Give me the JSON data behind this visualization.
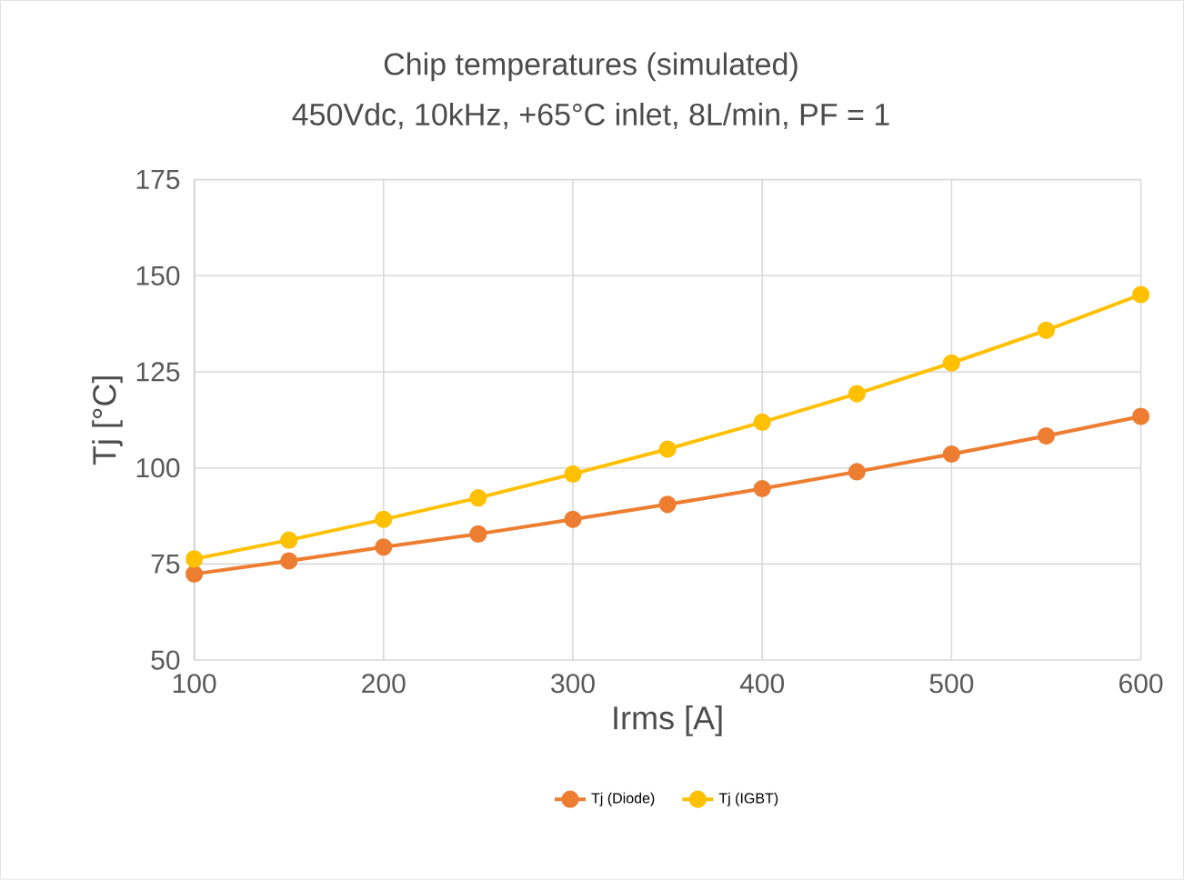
{
  "chart_data": {
    "type": "line",
    "title": "Chip temperatures (simulated)",
    "subtitle": "450Vdc, 10kHz, +65°C inlet, 8L/min, PF = 1",
    "xlabel": "Irms [A]",
    "ylabel": "Tj [°C]",
    "x": [
      100,
      150,
      200,
      250,
      300,
      350,
      400,
      450,
      500,
      550,
      600
    ],
    "series": [
      {
        "name": "Tj (Diode)",
        "color": "#ed7d31",
        "values": [
          72.4,
          75.8,
          79.4,
          82.8,
          86.6,
          90.5,
          94.6,
          99.0,
          103.6,
          108.3,
          113.4
        ]
      },
      {
        "name": "Tj (IGBT)",
        "color": "#ffc000",
        "values": [
          76.3,
          81.2,
          86.6,
          92.2,
          98.4,
          104.9,
          111.9,
          119.3,
          127.3,
          135.8,
          145.1
        ]
      }
    ],
    "xlim": [
      100,
      600
    ],
    "ylim": [
      50,
      175
    ],
    "xticks": [
      100,
      200,
      300,
      400,
      500,
      600
    ],
    "yticks": [
      50,
      75,
      100,
      125,
      150,
      175
    ],
    "grid": true,
    "legend": "bottom",
    "marker": "circle",
    "line_style": "solid"
  }
}
